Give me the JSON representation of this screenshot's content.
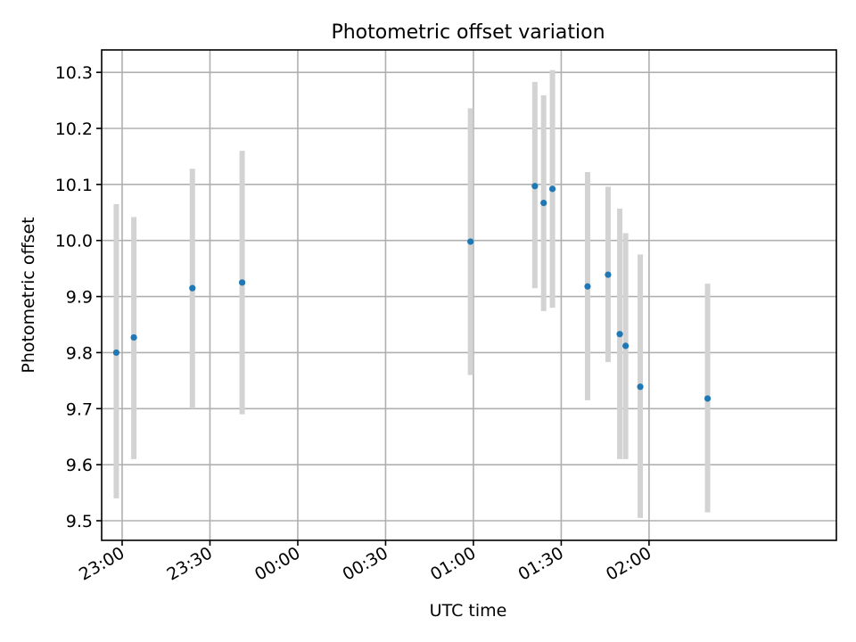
{
  "chart_data": {
    "type": "scatter",
    "title": "Photometric offset variation",
    "xlabel": "UTC time",
    "ylabel": "Photometric offset",
    "grid": true,
    "x_axis_kind": "time",
    "xlim": [
      "22:53",
      "03:04"
    ],
    "ylim": [
      9.465,
      10.34
    ],
    "x_ticks": [
      "23:00",
      "23:30",
      "00:00",
      "00:30",
      "01:00",
      "01:30",
      "02:00"
    ],
    "y_ticks": [
      9.5,
      9.6,
      9.7,
      9.8,
      9.9,
      10.0,
      10.1,
      10.2,
      10.3
    ],
    "y_tick_labels": [
      "9.5",
      "9.6",
      "9.7",
      "9.8",
      "9.9",
      "10.0",
      "10.1",
      "10.2",
      "10.3"
    ],
    "marker_color": "#1f77b4",
    "errorbar_color": "#d3d3d3",
    "series": [
      {
        "points": [
          {
            "x": "22:58",
            "y": 9.8,
            "lo": 9.54,
            "hi": 10.065
          },
          {
            "x": "23:04",
            "y": 9.827,
            "lo": 9.61,
            "hi": 10.042
          },
          {
            "x": "23:24",
            "y": 9.915,
            "lo": 9.7,
            "hi": 10.128
          },
          {
            "x": "23:41",
            "y": 9.925,
            "lo": 9.69,
            "hi": 10.16
          },
          {
            "x": "00:59",
            "y": 9.998,
            "lo": 9.76,
            "hi": 10.236
          },
          {
            "x": "01:21",
            "y": 10.097,
            "lo": 9.915,
            "hi": 10.283
          },
          {
            "x": "01:24",
            "y": 10.067,
            "lo": 9.874,
            "hi": 10.259
          },
          {
            "x": "01:27",
            "y": 10.092,
            "lo": 9.88,
            "hi": 10.304
          },
          {
            "x": "01:39",
            "y": 9.918,
            "lo": 9.715,
            "hi": 10.122
          },
          {
            "x": "01:46",
            "y": 9.939,
            "lo": 9.783,
            "hi": 10.096
          },
          {
            "x": "01:50",
            "y": 9.833,
            "lo": 9.61,
            "hi": 10.057
          },
          {
            "x": "01:52",
            "y": 9.812,
            "lo": 9.61,
            "hi": 10.013
          },
          {
            "x": "01:57",
            "y": 9.739,
            "lo": 9.505,
            "hi": 9.975
          },
          {
            "x": "02:20",
            "y": 9.718,
            "lo": 9.515,
            "hi": 9.923
          }
        ]
      }
    ]
  }
}
